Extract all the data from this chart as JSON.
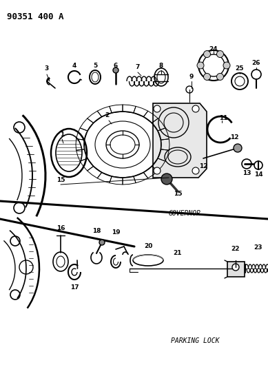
{
  "title": "90351 400 A",
  "background_color": "#ffffff",
  "fig_width": 3.89,
  "fig_height": 5.33,
  "dpi": 100,
  "governor_label": "GOVERNOR",
  "parking_lock_label": "PARKING LOCK"
}
